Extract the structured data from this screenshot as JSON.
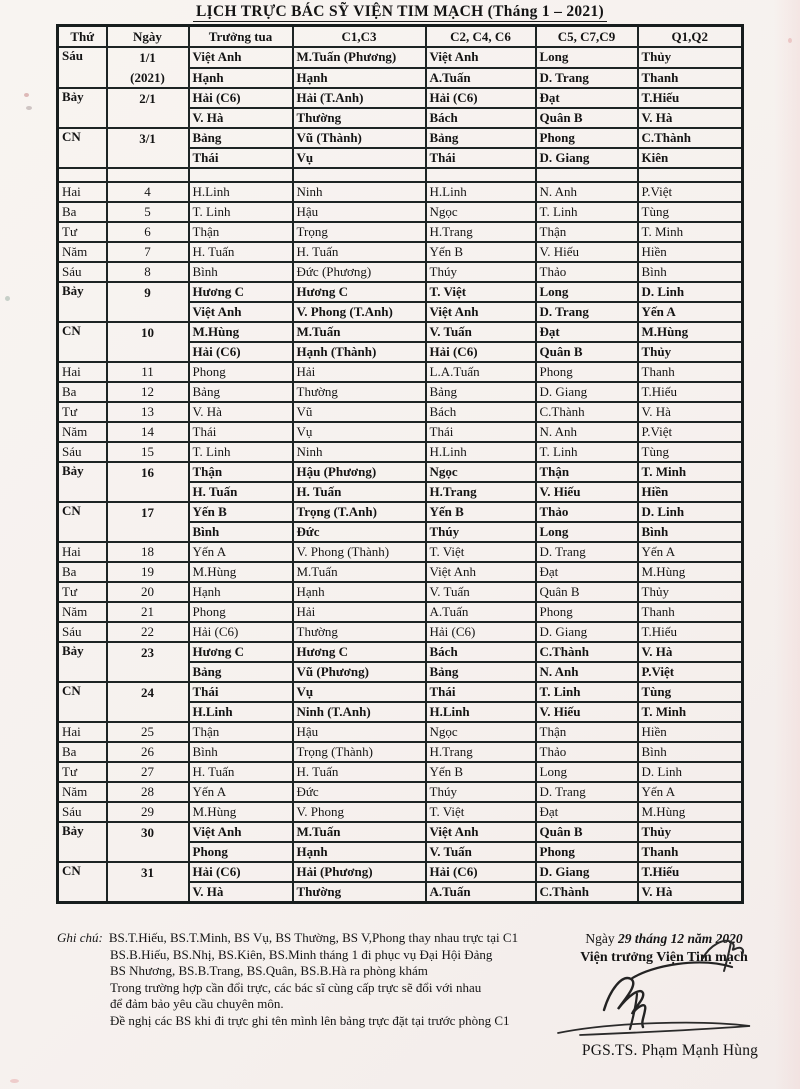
{
  "title": "LỊCH TRỰC BÁC SỸ VIỆN TIM MẠCH (Tháng 1 – 2021)",
  "colors": {
    "paper": "#f6f1ee",
    "ink": "#141414",
    "grid": "#1d2424"
  },
  "table": {
    "headers": [
      "Thứ",
      "Ngày",
      "Trưởng tua",
      "C1,C3",
      "C2, C4, C6",
      "C5, C7,C9",
      "Q1,Q2"
    ],
    "groups": [
      {
        "thu": "Sáu",
        "ngay": "1/1",
        "ngay_sub": "(2021)",
        "bold": true,
        "lines": [
          [
            "Việt Anh",
            "M.Tuấn (Phương)",
            "Việt Anh",
            "Long",
            "Thủy"
          ],
          [
            "Hạnh",
            "Hạnh",
            "A.Tuấn",
            "D. Trang",
            "Thanh"
          ]
        ]
      },
      {
        "thu": "Bảy",
        "ngay": "2/1",
        "bold": true,
        "lines": [
          [
            "Hải (C6)",
            "Hải (T.Anh)",
            "Hải (C6)",
            "Đạt",
            "T.Hiếu"
          ],
          [
            "V. Hà",
            "Thường",
            "Bách",
            "Quân B",
            "V. Hà"
          ]
        ]
      },
      {
        "thu": "CN",
        "ngay": "3/1",
        "bold": true,
        "lines": [
          [
            "Bảng",
            "Vũ (Thành)",
            "Bảng",
            "Phong",
            "C.Thành"
          ],
          [
            "Thái",
            "Vụ",
            "Thái",
            "D. Giang",
            "Kiên"
          ]
        ]
      },
      {
        "empty": true
      },
      {
        "thu": "Hai",
        "ngay": "4",
        "bold": false,
        "lines": [
          [
            "H.Linh",
            "Ninh",
            "H.Linh",
            "N. Anh",
            "P.Việt"
          ]
        ]
      },
      {
        "thu": "Ba",
        "ngay": "5",
        "bold": false,
        "lines": [
          [
            "T. Linh",
            "Hậu",
            "Ngọc",
            "T. Linh",
            "Tùng"
          ]
        ]
      },
      {
        "thu": "Tư",
        "ngay": "6",
        "bold": false,
        "lines": [
          [
            "Thận",
            "Trọng",
            "H.Trang",
            "Thận",
            "T. Minh"
          ]
        ]
      },
      {
        "thu": "Năm",
        "ngay": "7",
        "bold": false,
        "lines": [
          [
            "H. Tuấn",
            "H. Tuấn",
            "Yến B",
            "V. Hiếu",
            "Hiền"
          ]
        ]
      },
      {
        "thu": "Sáu",
        "ngay": "8",
        "bold": false,
        "lines": [
          [
            "Bình",
            "Đức (Phương)",
            "Thúy",
            "Thảo",
            "Bình"
          ]
        ]
      },
      {
        "thu": "Bảy",
        "ngay": "9",
        "bold": true,
        "lines": [
          [
            "Hương C",
            "Hương C",
            "T. Việt",
            "Long",
            "D. Linh"
          ],
          [
            "Việt Anh",
            "V. Phong (T.Anh)",
            "Việt Anh",
            "D. Trang",
            "Yến A"
          ]
        ]
      },
      {
        "thu": "CN",
        "ngay": "10",
        "bold": true,
        "lines": [
          [
            "M.Hùng",
            "M.Tuấn",
            "V. Tuấn",
            "Đạt",
            "M.Hùng"
          ],
          [
            "Hải (C6)",
            "Hạnh (Thành)",
            "Hải (C6)",
            "Quân B",
            "Thủy"
          ]
        ]
      },
      {
        "thu": "Hai",
        "ngay": "11",
        "bold": false,
        "lines": [
          [
            "Phong",
            "Hải",
            "L.A.Tuấn",
            "Phong",
            "Thanh"
          ]
        ]
      },
      {
        "thu": "Ba",
        "ngay": "12",
        "bold": false,
        "lines": [
          [
            "Bảng",
            "Thường",
            "Bảng",
            "D. Giang",
            "T.Hiếu"
          ]
        ]
      },
      {
        "thu": "Tư",
        "ngay": "13",
        "bold": false,
        "lines": [
          [
            "V. Hà",
            "Vũ",
            "Bách",
            "C.Thành",
            "V. Hà"
          ]
        ]
      },
      {
        "thu": "Năm",
        "ngay": "14",
        "bold": false,
        "lines": [
          [
            "Thái",
            "Vụ",
            "Thái",
            "N. Anh",
            "P.Việt"
          ]
        ]
      },
      {
        "thu": "Sáu",
        "ngay": "15",
        "bold": false,
        "lines": [
          [
            "T. Linh",
            "Ninh",
            "H.Linh",
            "T. Linh",
            "Tùng"
          ]
        ]
      },
      {
        "thu": "Bảy",
        "ngay": "16",
        "bold": true,
        "lines": [
          [
            "Thận",
            "Hậu (Phương)",
            "Ngọc",
            "Thận",
            "T. Minh"
          ],
          [
            "H. Tuấn",
            "H. Tuấn",
            "H.Trang",
            "V. Hiếu",
            "Hiền"
          ]
        ]
      },
      {
        "thu": "CN",
        "ngay": "17",
        "bold": true,
        "lines": [
          [
            "Yến B",
            "Trọng (T.Anh)",
            "Yến B",
            "Thảo",
            "D. Linh"
          ],
          [
            "Bình",
            "Đức",
            "Thúy",
            "Long",
            "Bình"
          ]
        ]
      },
      {
        "thu": "Hai",
        "ngay": "18",
        "bold": false,
        "lines": [
          [
            "Yến A",
            "V. Phong (Thành)",
            "T. Việt",
            "D. Trang",
            "Yến A"
          ]
        ]
      },
      {
        "thu": "Ba",
        "ngay": "19",
        "bold": false,
        "lines": [
          [
            "M.Hùng",
            "M.Tuấn",
            "Việt Anh",
            "Đạt",
            "M.Hùng"
          ]
        ]
      },
      {
        "thu": "Tư",
        "ngay": "20",
        "bold": false,
        "lines": [
          [
            "Hạnh",
            "Hạnh",
            "V. Tuấn",
            "Quân B",
            "Thủy"
          ]
        ]
      },
      {
        "thu": "Năm",
        "ngay": "21",
        "bold": false,
        "lines": [
          [
            "Phong",
            "Hải",
            "A.Tuấn",
            "Phong",
            "Thanh"
          ]
        ]
      },
      {
        "thu": "Sáu",
        "ngay": "22",
        "bold": false,
        "lines": [
          [
            "Hải (C6)",
            "Thường",
            "Hải (C6)",
            "D. Giang",
            "T.Hiếu"
          ]
        ]
      },
      {
        "thu": "Bảy",
        "ngay": "23",
        "bold": true,
        "lines": [
          [
            "Hương C",
            "Hương C",
            "Bách",
            "C.Thành",
            "V. Hà"
          ],
          [
            "Bảng",
            "Vũ (Phương)",
            "Bảng",
            "N. Anh",
            "P.Việt"
          ]
        ]
      },
      {
        "thu": "CN",
        "ngay": "24",
        "bold": true,
        "lines": [
          [
            "Thái",
            "Vụ",
            "Thái",
            "T. Linh",
            "Tùng"
          ],
          [
            "H.Linh",
            "Ninh (T.Anh)",
            "H.Linh",
            "V. Hiếu",
            "T. Minh"
          ]
        ]
      },
      {
        "thu": "Hai",
        "ngay": "25",
        "bold": false,
        "lines": [
          [
            "Thận",
            "Hậu",
            "Ngọc",
            "Thận",
            "Hiền"
          ]
        ]
      },
      {
        "thu": "Ba",
        "ngay": "26",
        "bold": false,
        "lines": [
          [
            "Bình",
            "Trọng (Thành)",
            "H.Trang",
            "Thảo",
            "Bình"
          ]
        ]
      },
      {
        "thu": "Tư",
        "ngay": "27",
        "bold": false,
        "lines": [
          [
            "H. Tuấn",
            "H. Tuấn",
            "Yến B",
            "Long",
            "D. Linh"
          ]
        ]
      },
      {
        "thu": "Năm",
        "ngay": "28",
        "bold": false,
        "lines": [
          [
            "Yến A",
            "Đức",
            "Thúy",
            "D. Trang",
            "Yến A"
          ]
        ]
      },
      {
        "thu": "Sáu",
        "ngay": "29",
        "bold": false,
        "lines": [
          [
            "M.Hùng",
            "V. Phong",
            "T. Việt",
            "Đạt",
            "M.Hùng"
          ]
        ]
      },
      {
        "thu": "Bảy",
        "ngay": "30",
        "bold": true,
        "lines": [
          [
            "Việt Anh",
            "M.Tuấn",
            "Việt Anh",
            "Quân B",
            "Thủy"
          ],
          [
            "Phong",
            "Hạnh",
            "V. Tuấn",
            "Phong",
            "Thanh"
          ]
        ]
      },
      {
        "thu": "CN",
        "ngay": "31",
        "bold": true,
        "lines": [
          [
            "Hải (C6)",
            "Hải (Phương)",
            "Hải (C6)",
            "D. Giang",
            "T.Hiếu"
          ],
          [
            "V. Hà",
            "Thường",
            "A.Tuấn",
            "C.Thành",
            "V. Hà"
          ]
        ]
      }
    ]
  },
  "notes": {
    "label": "Ghi chú:",
    "lines": [
      "BS.T.Hiếu, BS.T.Minh, BS Vụ, BS Thường, BS V,Phong thay nhau trực tại C1",
      "BS.B.Hiếu, BS.Nhị, BS.Kiên, BS.Minh tháng 1 đi phục vụ Đại Hội Đảng",
      "BS Nhương, BS.B.Trang, BS.Quân, BS.B.Hà ra phòng khám",
      "Trong trường hợp cần đổi trực, các bác sĩ cùng cấp trực sẽ đổi với nhau",
      "để đảm bảo yêu cầu chuyên môn.",
      "Đề nghị các BS khi đi trực ghi tên mình lên bảng trực đặt tại trước phòng C1"
    ]
  },
  "signature": {
    "date_prefix": "Ngày",
    "date_value": "29 tháng 12 năm 2020",
    "title_line": "Viện trưởng Viện Tim mạch",
    "signer": "PGS.TS. Phạm Mạnh Hùng"
  }
}
